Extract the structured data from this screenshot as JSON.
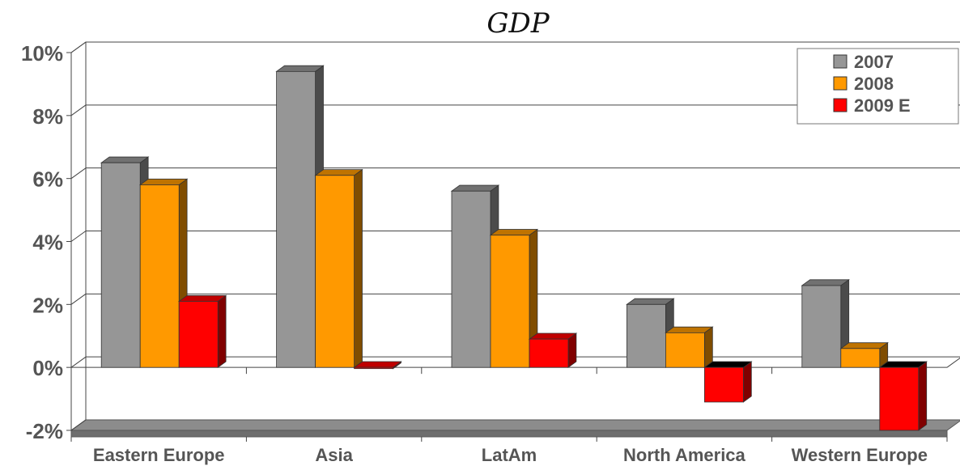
{
  "chart_data": {
    "type": "bar",
    "title": "GDP",
    "xlabel": "",
    "ylabel": "",
    "categories": [
      "Eastern Europe",
      "Asia",
      "LatAm",
      "North America",
      "Western Europe"
    ],
    "series": [
      {
        "name": "2007",
        "values": [
          6.5,
          9.4,
          5.6,
          2.0,
          2.6
        ],
        "color": "#969696"
      },
      {
        "name": "2008",
        "values": [
          5.8,
          6.1,
          4.2,
          1.1,
          0.6
        ],
        "color": "#FF9900"
      },
      {
        "name": "2009 E",
        "values": [
          2.1,
          0.0,
          0.9,
          -1.1,
          -2.0
        ],
        "color": "#FF0000"
      }
    ],
    "ylim": [
      -2,
      10
    ],
    "yticks": [
      -2,
      0,
      2,
      4,
      6,
      8,
      10
    ],
    "ytick_labels": [
      "-2%",
      "0%",
      "2%",
      "4%",
      "6%",
      "8%",
      "10%"
    ],
    "grid": true,
    "legend_position": "top-right",
    "style": "3d-clustered-bar"
  }
}
